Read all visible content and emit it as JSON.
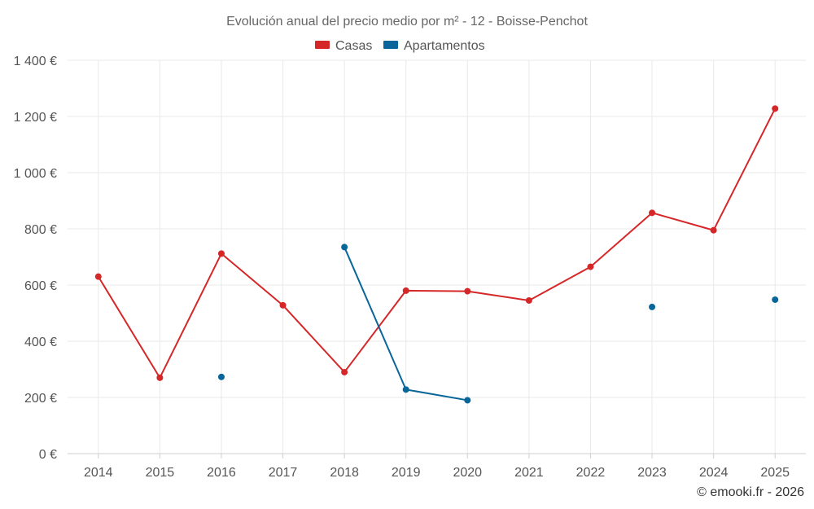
{
  "chart_data": {
    "type": "line",
    "title": "Evolución anual del precio medio por m² - 12 - Boisse-Penchot",
    "categories": [
      "2014",
      "2015",
      "2016",
      "2017",
      "2018",
      "2019",
      "2020",
      "2021",
      "2022",
      "2023",
      "2024",
      "2025"
    ],
    "series": [
      {
        "name": "Casas",
        "color": "#d62728",
        "values": [
          630,
          270,
          712,
          528,
          290,
          580,
          578,
          545,
          665,
          857,
          795,
          1228
        ]
      },
      {
        "name": "Apartamentos",
        "color": "#08669a",
        "values": [
          null,
          null,
          273,
          null,
          735,
          228,
          190,
          null,
          null,
          522,
          null,
          548
        ]
      }
    ],
    "ylim": [
      0,
      1400
    ],
    "yticks": [
      0,
      200,
      400,
      600,
      800,
      1000,
      1200,
      1400
    ],
    "ytick_labels": [
      "0 €",
      "200 €",
      "400 €",
      "600 €",
      "800 €",
      "1 000 €",
      "1 200 €",
      "1 400 €"
    ],
    "xlabel": "",
    "ylabel": "",
    "grid": true,
    "legend_position": "top-center",
    "credit": "© emooki.fr - 2026"
  }
}
